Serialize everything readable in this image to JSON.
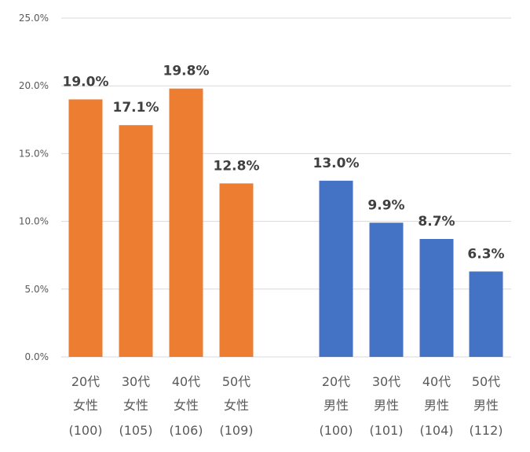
{
  "chart_data": {
    "type": "bar",
    "ylim": [
      0,
      25
    ],
    "y_ticks": [
      "0.0%",
      "5.0%",
      "10.0%",
      "15.0%",
      "20.0%",
      "25.0%"
    ],
    "grid": true,
    "categories": [
      {
        "lines": [
          "20代",
          "女性",
          "(100)"
        ],
        "value": 19.0,
        "label": "19.0%",
        "group": "female"
      },
      {
        "lines": [
          "30代",
          "女性",
          "(105)"
        ],
        "value": 17.1,
        "label": "17.1%",
        "group": "female"
      },
      {
        "lines": [
          "40代",
          "女性",
          "(106)"
        ],
        "value": 19.8,
        "label": "19.8%",
        "group": "female"
      },
      {
        "lines": [
          "50代",
          "女性",
          "(109)"
        ],
        "value": 12.8,
        "label": "12.8%",
        "group": "female"
      },
      {
        "lines": [
          "20代",
          "男性",
          "(100)"
        ],
        "value": 13.0,
        "label": "13.0%",
        "group": "male"
      },
      {
        "lines": [
          "30代",
          "男性",
          "(101)"
        ],
        "value": 9.9,
        "label": "9.9%",
        "group": "male"
      },
      {
        "lines": [
          "40代",
          "男性",
          "(104)"
        ],
        "value": 8.7,
        "label": "8.7%",
        "group": "male"
      },
      {
        "lines": [
          "50代",
          "男性",
          "(112)"
        ],
        "value": 6.3,
        "label": "6.3%",
        "group": "male"
      }
    ],
    "colors": {
      "female": "#ED7D31",
      "male": "#4472C4"
    }
  }
}
